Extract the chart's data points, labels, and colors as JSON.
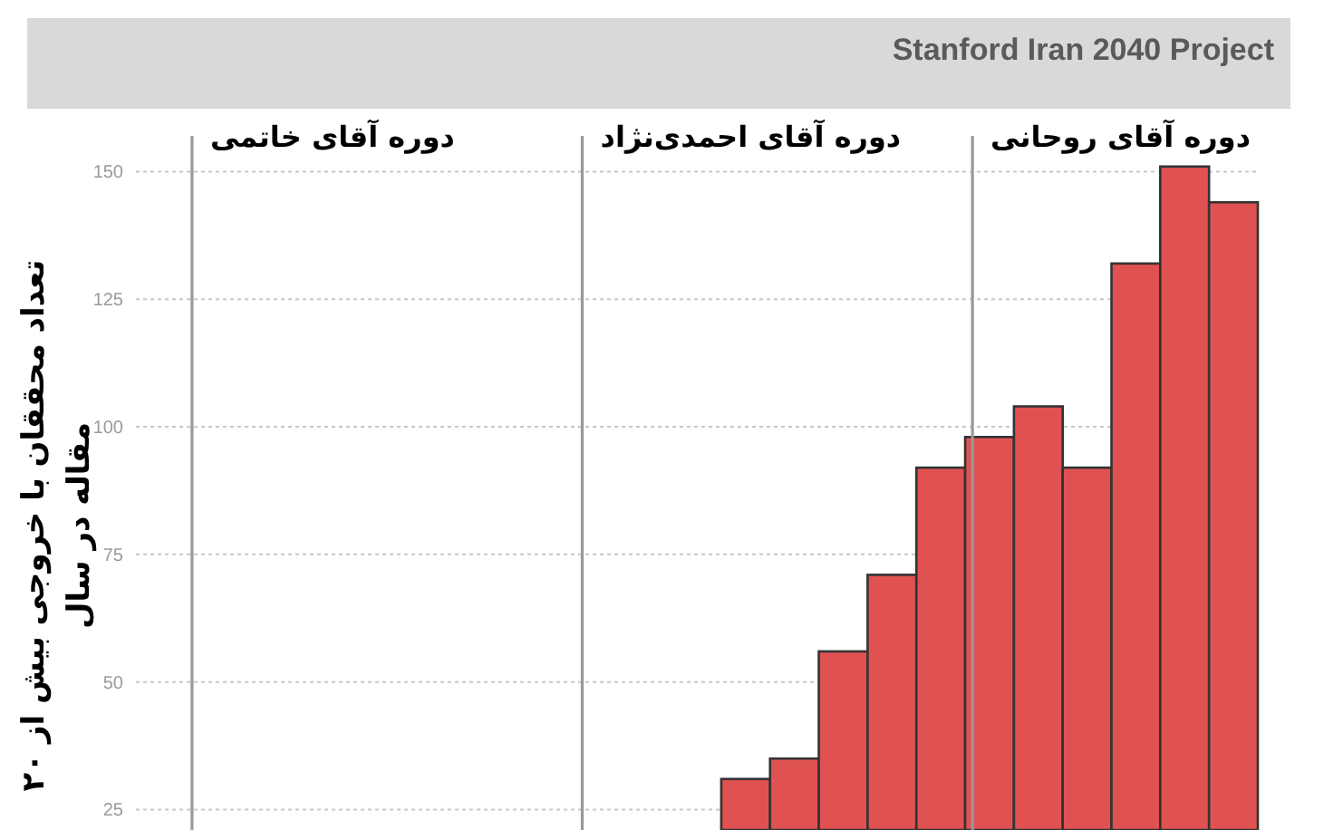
{
  "chart_data": {
    "type": "bar",
    "ylabel": "تعداد محققان با خروجی بیش از ۲۰ مقاله در سال",
    "categories": [
      null,
      null,
      null,
      null,
      null,
      null,
      null,
      null,
      null,
      null,
      null,
      null,
      null,
      null,
      null,
      null,
      null,
      null,
      null,
      null,
      null,
      null,
      null
    ],
    "values": [
      null,
      null,
      null,
      null,
      null,
      null,
      null,
      null,
      null,
      null,
      null,
      null,
      31,
      35,
      56,
      71,
      92,
      98,
      104,
      92,
      132,
      151,
      144
    ],
    "color": "#e05252",
    "ylim": [
      21,
      157
    ],
    "yticks": [
      25,
      50,
      75,
      100,
      125,
      150
    ],
    "grid": "y",
    "tick_labels": "y",
    "annotations": [
      "Stanford Iran 2040 Project",
      "دوره آقای خاتمی",
      "دوره آقای احمدی‌نژاد",
      "دوره آقای روحانی"
    ]
  }
}
